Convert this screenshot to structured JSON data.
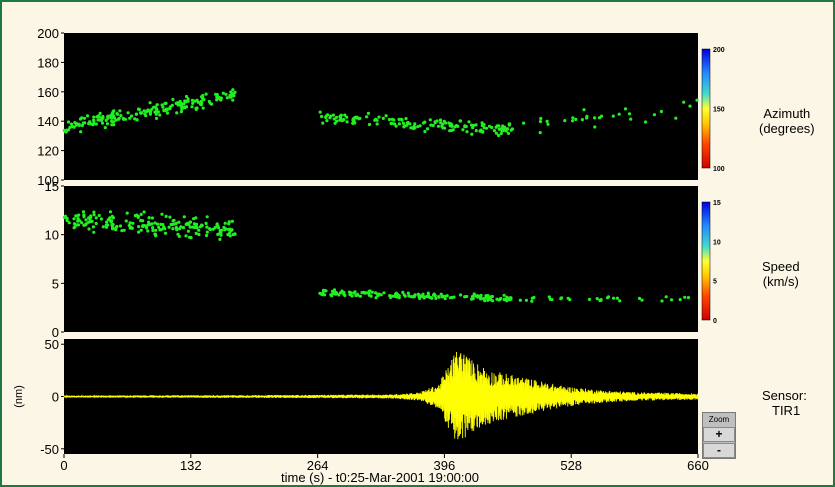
{
  "chart_data": [
    {
      "type": "scatter",
      "name_text": "Azimuth\n(degrees)",
      "ylim": [
        100,
        200
      ],
      "yticks": [
        "200",
        "180",
        "160",
        "140",
        "120",
        "100"
      ],
      "colorbar": {
        "ticks": [
          "200",
          "150",
          "100"
        ],
        "min": 100,
        "max": 200
      },
      "point_color": "#22ee22",
      "clusters": [
        {
          "x_range": [
            0,
            180
          ],
          "y_start": 136,
          "y_end": 158,
          "spread": 7,
          "count": 200
        },
        {
          "x_range": [
            265,
            470
          ],
          "y_start": 143,
          "y_end": 134,
          "spread": 6,
          "count": 160
        },
        {
          "x_range": [
            470,
            660
          ],
          "y_start": 137,
          "y_end": 150,
          "spread": 9,
          "count": 30
        }
      ]
    },
    {
      "type": "scatter",
      "name_text": "Speed\n(km/s)",
      "ylim": [
        0,
        15
      ],
      "yticks": [
        "15",
        "10",
        "5",
        "0"
      ],
      "colorbar": {
        "ticks": [
          "15",
          "10",
          "5",
          "0"
        ],
        "min": 0,
        "max": 15
      },
      "point_color": "#22ee22",
      "clusters": [
        {
          "x_range": [
            0,
            180
          ],
          "y_start": 11.5,
          "y_end": 10.5,
          "spread": 1.5,
          "count": 200
        },
        {
          "x_range": [
            265,
            470
          ],
          "y_start": 4,
          "y_end": 3.4,
          "spread": 0.5,
          "count": 160
        },
        {
          "x_range": [
            470,
            660
          ],
          "y_start": 3.4,
          "y_end": 3.4,
          "spread": 0.4,
          "count": 30
        }
      ]
    },
    {
      "type": "line",
      "name_text": "Sensor:\n TIR1",
      "ylabel": "(nm)",
      "ylim": [
        -55,
        55
      ],
      "yticks": [
        "50",
        "0",
        "-50"
      ],
      "line_color": "#ffff00",
      "envelope": [
        [
          0,
          1
        ],
        [
          132,
          1.2
        ],
        [
          250,
          1.5
        ],
        [
          340,
          2
        ],
        [
          370,
          4
        ],
        [
          390,
          12
        ],
        [
          410,
          48
        ],
        [
          425,
          35
        ],
        [
          445,
          25
        ],
        [
          480,
          18
        ],
        [
          520,
          10
        ],
        [
          560,
          6
        ],
        [
          600,
          4
        ],
        [
          660,
          3
        ]
      ],
      "xlabel": "time (s) - t0:25-Mar-2001 19:00:00",
      "xticks": [
        "0",
        "132",
        "264",
        "396",
        "528",
        "660"
      ],
      "xlim": [
        0,
        660
      ]
    }
  ],
  "zoom": {
    "label": "Zoom",
    "plus": "+",
    "minus": "-"
  }
}
